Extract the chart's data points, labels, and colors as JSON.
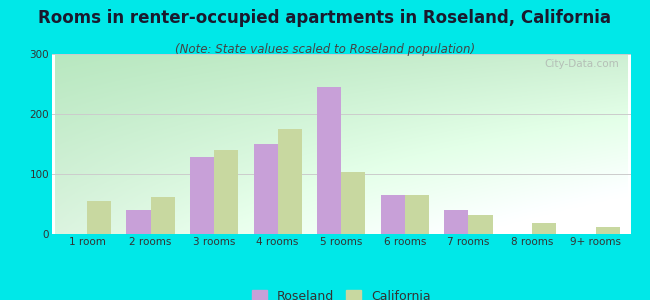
{
  "title": "Rooms in renter-occupied apartments in Roseland, California",
  "subtitle": "(Note: State values scaled to Roseland population)",
  "categories": [
    "1 room",
    "2 rooms",
    "3 rooms",
    "4 rooms",
    "5 rooms",
    "6 rooms",
    "7 rooms",
    "8 rooms",
    "9+ rooms"
  ],
  "roseland_values": [
    0,
    40,
    128,
    150,
    245,
    65,
    40,
    0,
    0
  ],
  "california_values": [
    55,
    62,
    140,
    175,
    103,
    65,
    32,
    18,
    12
  ],
  "roseland_color": "#c8a0d8",
  "california_color": "#c8d8a0",
  "background_outer": "#00e8e8",
  "ylim": [
    0,
    300
  ],
  "yticks": [
    0,
    100,
    200,
    300
  ],
  "title_fontsize": 12,
  "subtitle_fontsize": 8.5,
  "legend_fontsize": 9,
  "bar_width": 0.38,
  "watermark_text": "City-Data.com"
}
